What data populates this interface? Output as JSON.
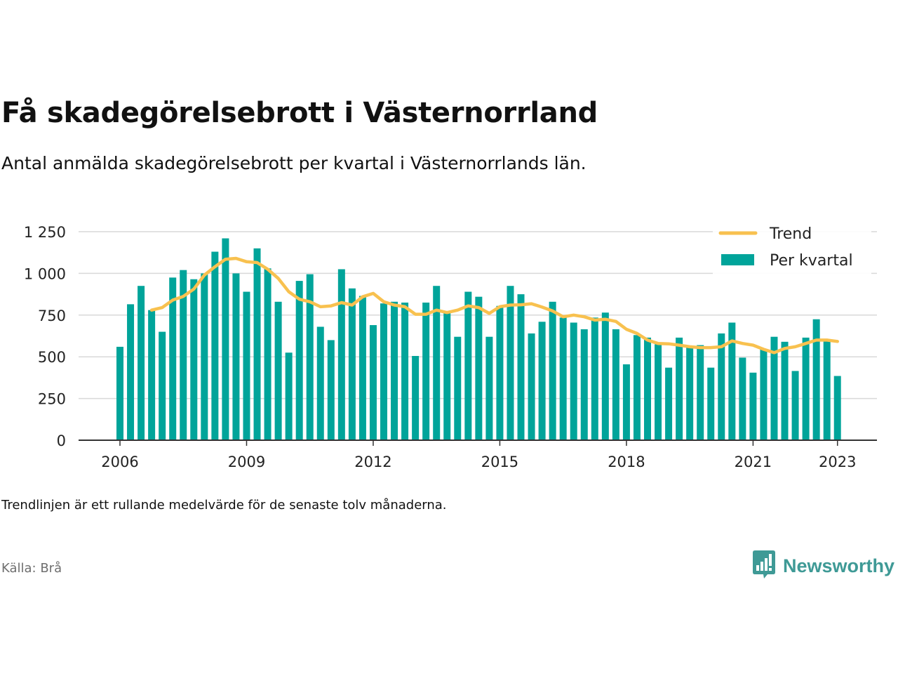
{
  "title": "Få skadegörelsebrott i Västernorrland",
  "subtitle": "Antal anmälda skadegörelsebrott per kvartal i Västernorrlands län.",
  "note": "Trendlinjen är ett rullande medelvärde för de senaste tolv månaderna.",
  "source": "Källa: Brå",
  "logo": {
    "text": "Newsworthy",
    "icon": "bar-chart-speech-bubble-icon"
  },
  "colors": {
    "bars": "#00a49a",
    "trend": "#f8c14f",
    "grid": "#d9d9d9",
    "axis": "#333333",
    "logo": "#3f9a96"
  },
  "chart_data": {
    "type": "bar",
    "x_ticks": [
      "2006",
      "2009",
      "2012",
      "2015",
      "2018",
      "2021",
      "2023"
    ],
    "y_ticks": [
      "0",
      "250",
      "500",
      "750",
      "1 000",
      "1 250"
    ],
    "ylim": [
      0,
      1250
    ],
    "grid": true,
    "legend_position": "top-right",
    "legend": [
      {
        "label": "Trend",
        "kind": "line"
      },
      {
        "label": "Per kvartal",
        "kind": "bar"
      }
    ],
    "categories": [
      "2006 Q1",
      "2006 Q2",
      "2006 Q3",
      "2006 Q4",
      "2007 Q1",
      "2007 Q2",
      "2007 Q3",
      "2007 Q4",
      "2008 Q1",
      "2008 Q2",
      "2008 Q3",
      "2008 Q4",
      "2009 Q1",
      "2009 Q2",
      "2009 Q3",
      "2009 Q4",
      "2010 Q1",
      "2010 Q2",
      "2010 Q3",
      "2010 Q4",
      "2011 Q1",
      "2011 Q2",
      "2011 Q3",
      "2011 Q4",
      "2012 Q1",
      "2012 Q2",
      "2012 Q3",
      "2012 Q4",
      "2013 Q1",
      "2013 Q2",
      "2013 Q3",
      "2013 Q4",
      "2014 Q1",
      "2014 Q2",
      "2014 Q3",
      "2014 Q4",
      "2015 Q1",
      "2015 Q2",
      "2015 Q3",
      "2015 Q4",
      "2016 Q1",
      "2016 Q2",
      "2016 Q3",
      "2016 Q4",
      "2017 Q1",
      "2017 Q2",
      "2017 Q3",
      "2017 Q4",
      "2018 Q1",
      "2018 Q2",
      "2018 Q3",
      "2018 Q4",
      "2019 Q1",
      "2019 Q2",
      "2019 Q3",
      "2019 Q4",
      "2020 Q1",
      "2020 Q2",
      "2020 Q3",
      "2020 Q4",
      "2021 Q1",
      "2021 Q2",
      "2021 Q3",
      "2021 Q4",
      "2022 Q1",
      "2022 Q2",
      "2022 Q3",
      "2022 Q4",
      "2023 Q1"
    ],
    "series": [
      {
        "name": "Per kvartal",
        "type": "bar",
        "values": [
          560,
          815,
          925,
          780,
          650,
          975,
          1020,
          965,
          1000,
          1130,
          1210,
          1000,
          890,
          1150,
          1030,
          830,
          525,
          955,
          995,
          680,
          600,
          1025,
          910,
          865,
          690,
          820,
          830,
          825,
          505,
          825,
          925,
          770,
          620,
          890,
          860,
          620,
          805,
          925,
          875,
          640,
          710,
          830,
          735,
          705,
          665,
          735,
          765,
          665,
          455,
          630,
          615,
          575,
          435,
          615,
          560,
          570,
          435,
          640,
          705,
          495,
          405,
          545,
          620,
          590,
          415,
          615,
          725,
          605,
          385
        ]
      },
      {
        "name": "Trend",
        "type": "line",
        "values": [
          null,
          null,
          null,
          780,
          795,
          840,
          862,
          906,
          990,
          1040,
          1085,
          1090,
          1070,
          1065,
          1025,
          970,
          890,
          845,
          830,
          800,
          805,
          825,
          810,
          860,
          880,
          830,
          810,
          800,
          755,
          755,
          780,
          765,
          780,
          805,
          795,
          760,
          800,
          810,
          812,
          818,
          798,
          775,
          740,
          750,
          740,
          720,
          725,
          712,
          665,
          640,
          600,
          580,
          578,
          570,
          560,
          555,
          555,
          560,
          595,
          580,
          570,
          545,
          525,
          550,
          560,
          580,
          600,
          600,
          592
        ]
      }
    ]
  }
}
